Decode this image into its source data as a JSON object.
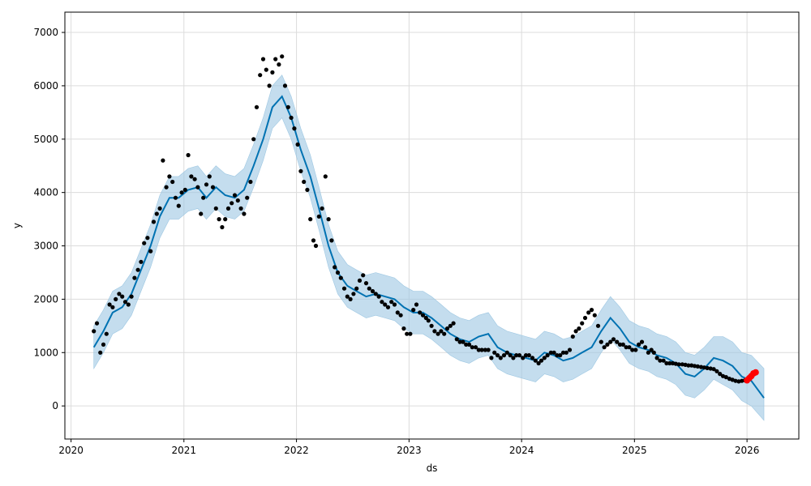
{
  "chart_data": {
    "type": "scatter",
    "title": "",
    "xlabel": "ds",
    "ylabel": "y",
    "xlim": [
      "2019-12-12",
      "2026-06-18"
    ],
    "ylim": [
      -620,
      7380
    ],
    "x_ticks": [
      "2020",
      "2021",
      "2022",
      "2023",
      "2024",
      "2025",
      "2026"
    ],
    "y_ticks": [
      0,
      1000,
      2000,
      3000,
      4000,
      5000,
      6000,
      7000
    ],
    "grid": true,
    "legend": "none",
    "colors": {
      "actual": "#000000",
      "forecast": "#0072B2",
      "interval": "#9dc7e2",
      "recent": "#ff0000",
      "grid": "#dcdcdc"
    },
    "series": [
      {
        "name": "",
        "kind": "points",
        "x": [
          "2020-03-15",
          "2020-03-25",
          "2020-04-05",
          "2020-04-15",
          "2020-04-25",
          "2020-05-05",
          "2020-05-15",
          "2020-05-25",
          "2020-06-05",
          "2020-06-15",
          "2020-06-25",
          "2020-07-05",
          "2020-07-15",
          "2020-07-25",
          "2020-08-05",
          "2020-08-15",
          "2020-08-25",
          "2020-09-05",
          "2020-09-15",
          "2020-09-25",
          "2020-10-05",
          "2020-10-15",
          "2020-10-25",
          "2020-11-05",
          "2020-11-15",
          "2020-11-25",
          "2020-12-05",
          "2020-12-15",
          "2020-12-25",
          "2021-01-05",
          "2021-01-15",
          "2021-01-25",
          "2021-02-05",
          "2021-02-15",
          "2021-02-25",
          "2021-03-05",
          "2021-03-15",
          "2021-03-25",
          "2021-04-05",
          "2021-04-15",
          "2021-04-25",
          "2021-05-05",
          "2021-05-15",
          "2021-05-25",
          "2021-06-05",
          "2021-06-15",
          "2021-06-25",
          "2021-07-05",
          "2021-07-15",
          "2021-07-25",
          "2021-08-05",
          "2021-08-15",
          "2021-08-25",
          "2021-09-05",
          "2021-09-15",
          "2021-09-25",
          "2021-10-05",
          "2021-10-15",
          "2021-10-25",
          "2021-11-05",
          "2021-11-15",
          "2021-11-25",
          "2021-12-05",
          "2021-12-15",
          "2021-12-25",
          "2022-01-05",
          "2022-01-15",
          "2022-01-25",
          "2022-02-05",
          "2022-02-15",
          "2022-02-25",
          "2022-03-05",
          "2022-03-15",
          "2022-03-25",
          "2022-04-05",
          "2022-04-15",
          "2022-04-25",
          "2022-05-05",
          "2022-05-15",
          "2022-05-25",
          "2022-06-05",
          "2022-06-15",
          "2022-06-25",
          "2022-07-05",
          "2022-07-15",
          "2022-07-25",
          "2022-08-05",
          "2022-08-15",
          "2022-08-25",
          "2022-09-05",
          "2022-09-15",
          "2022-09-25",
          "2022-10-05",
          "2022-10-15",
          "2022-10-25",
          "2022-11-05",
          "2022-11-15",
          "2022-11-25",
          "2022-12-05",
          "2022-12-15",
          "2022-12-25",
          "2023-01-05",
          "2023-01-15",
          "2023-01-25",
          "2023-02-05",
          "2023-02-15",
          "2023-02-25",
          "2023-03-05",
          "2023-03-15",
          "2023-03-25",
          "2023-04-05",
          "2023-04-15",
          "2023-04-25",
          "2023-05-05",
          "2023-05-15",
          "2023-05-25",
          "2023-06-05",
          "2023-06-15",
          "2023-06-25",
          "2023-07-05",
          "2023-07-15",
          "2023-07-25",
          "2023-08-05",
          "2023-08-15",
          "2023-08-25",
          "2023-09-05",
          "2023-09-15",
          "2023-09-25",
          "2023-10-05",
          "2023-10-15",
          "2023-10-25",
          "2023-11-05",
          "2023-11-15",
          "2023-11-25",
          "2023-12-05",
          "2023-12-15",
          "2023-12-25",
          "2024-01-05",
          "2024-01-15",
          "2024-01-25",
          "2024-02-05",
          "2024-02-15",
          "2024-02-25",
          "2024-03-05",
          "2024-03-15",
          "2024-03-25",
          "2024-04-05",
          "2024-04-15",
          "2024-04-25",
          "2024-05-05",
          "2024-05-15",
          "2024-05-25",
          "2024-06-05",
          "2024-06-15",
          "2024-06-25",
          "2024-07-05",
          "2024-07-15",
          "2024-07-25",
          "2024-08-05",
          "2024-08-15",
          "2024-08-25",
          "2024-09-05",
          "2024-09-15",
          "2024-09-25",
          "2024-10-05",
          "2024-10-15",
          "2024-10-25",
          "2024-11-05",
          "2024-11-15",
          "2024-11-25",
          "2024-12-05",
          "2024-12-15",
          "2024-12-25",
          "2025-01-05",
          "2025-01-15",
          "2025-01-25",
          "2025-02-05",
          "2025-02-15",
          "2025-02-25",
          "2025-03-05",
          "2025-03-15",
          "2025-03-25",
          "2025-04-05",
          "2025-04-15",
          "2025-04-25",
          "2025-05-05",
          "2025-05-15",
          "2025-05-25",
          "2025-06-05",
          "2025-06-15",
          "2025-06-25",
          "2025-07-05",
          "2025-07-15",
          "2025-07-25",
          "2025-08-05",
          "2025-08-15",
          "2025-08-25",
          "2025-09-05",
          "2025-09-15",
          "2025-09-25",
          "2025-10-05",
          "2025-10-15",
          "2025-10-25",
          "2025-11-05",
          "2025-11-15",
          "2025-11-25",
          "2025-12-05",
          "2025-12-15",
          "2025-12-25"
        ],
        "y": [
          1400,
          1550,
          1000,
          1150,
          1350,
          1900,
          1850,
          2000,
          2100,
          2050,
          1950,
          1900,
          2050,
          2400,
          2550,
          2700,
          3050,
          3150,
          2900,
          3450,
          3600,
          3700,
          4600,
          4100,
          4300,
          4200,
          3900,
          3750,
          4000,
          4050,
          4700,
          4300,
          4250,
          4100,
          3600,
          3900,
          4150,
          4300,
          4100,
          3700,
          3500,
          3350,
          3500,
          3700,
          3800,
          3950,
          3850,
          3700,
          3600,
          3900,
          4200,
          5000,
          5600,
          6200,
          6500,
          6300,
          6000,
          6250,
          6500,
          6400,
          6550,
          6000,
          5600,
          5400,
          5200,
          4900,
          4400,
          4200,
          4050,
          3500,
          3100,
          3000,
          3550,
          3700,
          4300,
          3500,
          3100,
          2600,
          2500,
          2400,
          2200,
          2050,
          2000,
          2100,
          2200,
          2350,
          2450,
          2300,
          2200,
          2150,
          2100,
          2050,
          1950,
          1900,
          1850,
          1950,
          1900,
          1750,
          1700,
          1450,
          1350,
          1350,
          1800,
          1900,
          1750,
          1700,
          1650,
          1600,
          1500,
          1400,
          1350,
          1400,
          1350,
          1450,
          1500,
          1550,
          1250,
          1200,
          1200,
          1150,
          1150,
          1100,
          1100,
          1050,
          1050,
          1050,
          1050,
          900,
          1000,
          950,
          900,
          950,
          1000,
          950,
          900,
          950,
          950,
          900,
          950,
          950,
          900,
          850,
          800,
          850,
          900,
          950,
          1000,
          1000,
          950,
          950,
          1000,
          1000,
          1050,
          1300,
          1400,
          1450,
          1550,
          1650,
          1750,
          1800,
          1700,
          1500,
          1200,
          1100,
          1150,
          1200,
          1250,
          1200,
          1150,
          1150,
          1100,
          1100,
          1050,
          1050,
          1150,
          1200,
          1100,
          1000,
          1050,
          1000,
          900,
          850,
          850,
          800,
          800,
          800,
          790,
          780,
          780,
          770,
          760,
          760,
          750,
          740,
          730,
          720,
          710,
          700,
          690,
          650,
          600,
          560,
          540,
          510,
          490,
          470,
          460,
          470,
          480
        ]
      },
      {
        "name": "",
        "kind": "forecast-line",
        "x": [
          "2020-03-15",
          "2020-04-15",
          "2020-05-15",
          "2020-06-15",
          "2020-07-15",
          "2020-08-15",
          "2020-09-15",
          "2020-10-15",
          "2020-11-15",
          "2020-12-15",
          "2021-01-15",
          "2021-02-15",
          "2021-03-15",
          "2021-04-15",
          "2021-05-15",
          "2021-06-15",
          "2021-07-15",
          "2021-08-15",
          "2021-09-15",
          "2021-10-15",
          "2021-11-15",
          "2021-12-15",
          "2022-01-15",
          "2022-02-15",
          "2022-03-15",
          "2022-04-15",
          "2022-05-15",
          "2022-06-15",
          "2022-07-15",
          "2022-08-15",
          "2022-09-15",
          "2022-10-15",
          "2022-11-15",
          "2022-12-15",
          "2023-01-15",
          "2023-02-15",
          "2023-03-15",
          "2023-04-15",
          "2023-05-15",
          "2023-06-15",
          "2023-07-15",
          "2023-08-15",
          "2023-09-15",
          "2023-10-15",
          "2023-11-15",
          "2023-12-15",
          "2024-01-15",
          "2024-02-15",
          "2024-03-15",
          "2024-04-15",
          "2024-05-15",
          "2024-06-15",
          "2024-07-15",
          "2024-08-15",
          "2024-09-15",
          "2024-10-15",
          "2024-11-15",
          "2024-12-15",
          "2025-01-15",
          "2025-02-15",
          "2025-03-15",
          "2025-04-15",
          "2025-05-15",
          "2025-06-15",
          "2025-07-15",
          "2025-08-15",
          "2025-09-15",
          "2025-10-15",
          "2025-11-15",
          "2025-12-15",
          "2026-01-15",
          "2026-02-25"
        ],
        "y": [
          1100,
          1400,
          1750,
          1850,
          2100,
          2550,
          3000,
          3550,
          3900,
          3900,
          4050,
          4100,
          3900,
          4100,
          3950,
          3900,
          4050,
          4500,
          5000,
          5600,
          5800,
          5400,
          4800,
          4300,
          3700,
          3000,
          2500,
          2250,
          2150,
          2050,
          2100,
          2050,
          2000,
          1850,
          1750,
          1750,
          1650,
          1500,
          1350,
          1250,
          1200,
          1300,
          1350,
          1100,
          1000,
          950,
          900,
          850,
          1000,
          950,
          850,
          900,
          1000,
          1100,
          1400,
          1650,
          1450,
          1200,
          1100,
          1050,
          950,
          900,
          800,
          600,
          550,
          700,
          900,
          850,
          750,
          550,
          470,
          150
        ]
      },
      {
        "name": "",
        "kind": "interval-upper",
        "y": [
          1500,
          1800,
          2150,
          2250,
          2500,
          2950,
          3400,
          3950,
          4300,
          4300,
          4450,
          4500,
          4300,
          4500,
          4350,
          4300,
          4450,
          4900,
          5400,
          6000,
          6200,
          5800,
          5200,
          4700,
          4100,
          3400,
          2900,
          2650,
          2550,
          2450,
          2500,
          2450,
          2400,
          2250,
          2150,
          2150,
          2050,
          1900,
          1750,
          1650,
          1600,
          1700,
          1750,
          1500,
          1400,
          1350,
          1300,
          1250,
          1400,
          1350,
          1250,
          1300,
          1400,
          1500,
          1800,
          2050,
          1850,
          1600,
          1500,
          1450,
          1350,
          1300,
          1200,
          1000,
          950,
          1100,
          1300,
          1300,
          1200,
          1000,
          950,
          700
        ]
      },
      {
        "name": "",
        "kind": "interval-lower",
        "y": [
          700,
          1000,
          1350,
          1450,
          1700,
          2150,
          2600,
          3150,
          3500,
          3500,
          3650,
          3700,
          3500,
          3700,
          3550,
          3500,
          3650,
          4100,
          4600,
          5200,
          5400,
          5000,
          4400,
          3900,
          3300,
          2600,
          2100,
          1850,
          1750,
          1650,
          1700,
          1650,
          1600,
          1450,
          1350,
          1350,
          1250,
          1100,
          950,
          850,
          800,
          900,
          950,
          700,
          600,
          550,
          500,
          450,
          600,
          550,
          450,
          500,
          600,
          700,
          1000,
          1250,
          1050,
          800,
          700,
          650,
          550,
          500,
          400,
          200,
          150,
          300,
          500,
          400,
          300,
          100,
          0,
          -270
        ]
      },
      {
        "name": "",
        "kind": "recent-points",
        "x": [
          "2026-01-01",
          "2026-01-08",
          "2026-01-15",
          "2026-01-22",
          "2026-01-29"
        ],
        "y": [
          480,
          520,
          560,
          610,
          630
        ]
      }
    ]
  }
}
